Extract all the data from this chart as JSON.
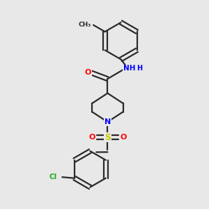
{
  "bg_color": "#e8e8e8",
  "bond_color": "#2a2a2a",
  "N_color": "#0000ff",
  "O_color": "#ff0000",
  "S_color": "#cccc00",
  "Cl_color": "#22aa22",
  "line_width": 1.6,
  "figsize": [
    3.0,
    3.0
  ],
  "dpi": 100,
  "xlim": [
    0,
    10
  ],
  "ylim": [
    0,
    10
  ]
}
